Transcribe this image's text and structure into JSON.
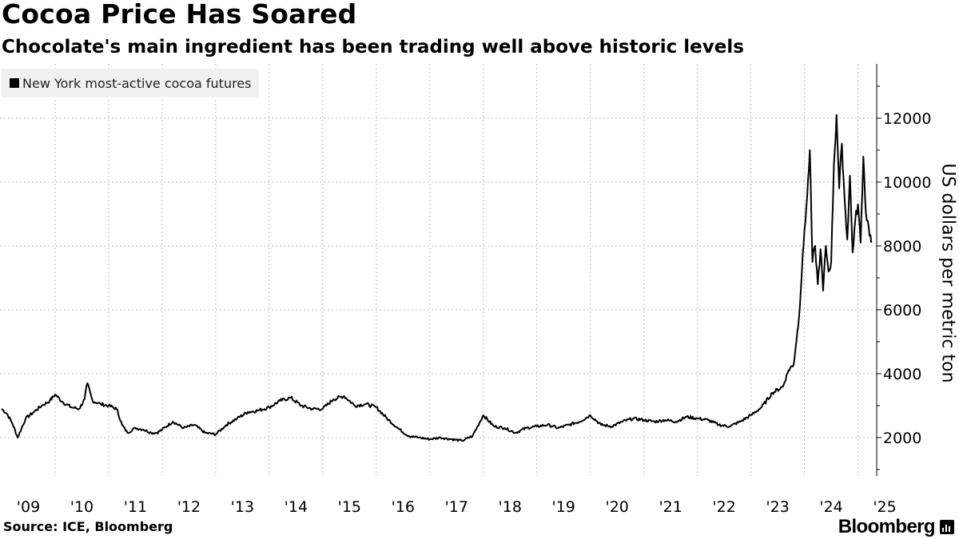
{
  "header": {
    "title": "Cocoa Price Has Soared",
    "subtitle": "Chocolate's main ingredient has been trading well above historic levels"
  },
  "footer": {
    "source": "Source: ICE, Bloomberg",
    "brand": "Bloomberg",
    "brand_icon": "bar-chart-icon"
  },
  "colors": {
    "line": "#000000",
    "grid": "#bdbdbd",
    "legend_bg": "#f1f1f1",
    "background": "#ffffff"
  },
  "chart_data": {
    "type": "line",
    "title": "Cocoa Price Has Soared",
    "subtitle": "Chocolate's main ingredient has been trading well above historic levels",
    "xlabel": "",
    "ylabel": "US dollars per metric ton",
    "ylim": [
      800,
      13700
    ],
    "xlim": [
      2008.97,
      2025.35
    ],
    "yticks": [
      2000,
      4000,
      6000,
      8000,
      10000,
      12000
    ],
    "xtick_labels": [
      "'09",
      "'10",
      "'11",
      "'12",
      "'13",
      "'14",
      "'15",
      "'16",
      "'17",
      "'18",
      "'19",
      "'20",
      "'21",
      "'22",
      "'23",
      "'24",
      "'25"
    ],
    "grid": true,
    "legend_position": "top-left",
    "series": [
      {
        "name": "New York most-active cocoa futures",
        "x": [
          2009.0,
          2009.1,
          2009.2,
          2009.3,
          2009.45,
          2009.6,
          2009.75,
          2009.9,
          2010.0,
          2010.15,
          2010.3,
          2010.45,
          2010.55,
          2010.6,
          2010.7,
          2010.85,
          2011.0,
          2011.15,
          2011.25,
          2011.35,
          2011.5,
          2011.65,
          2011.8,
          2011.9,
          2012.0,
          2012.2,
          2012.4,
          2012.6,
          2012.8,
          2013.0,
          2013.2,
          2013.4,
          2013.6,
          2013.8,
          2014.0,
          2014.2,
          2014.4,
          2014.6,
          2014.8,
          2015.0,
          2015.2,
          2015.4,
          2015.6,
          2015.8,
          2016.0,
          2016.2,
          2016.4,
          2016.6,
          2016.8,
          2017.0,
          2017.2,
          2017.4,
          2017.6,
          2017.8,
          2018.0,
          2018.2,
          2018.4,
          2018.6,
          2018.8,
          2019.0,
          2019.2,
          2019.4,
          2019.6,
          2019.8,
          2020.0,
          2020.2,
          2020.4,
          2020.6,
          2020.8,
          2021.0,
          2021.2,
          2021.4,
          2021.6,
          2021.8,
          2022.0,
          2022.2,
          2022.4,
          2022.6,
          2022.8,
          2023.0,
          2023.2,
          2023.4,
          2023.6,
          2023.7,
          2023.8,
          2023.9,
          2024.0,
          2024.05,
          2024.1,
          2024.15,
          2024.2,
          2024.25,
          2024.3,
          2024.35,
          2024.4,
          2024.45,
          2024.5,
          2024.55,
          2024.6,
          2024.65,
          2024.7,
          2024.75,
          2024.8,
          2024.85,
          2024.9,
          2024.95,
          2025.0,
          2025.05,
          2025.1,
          2025.15,
          2025.2,
          2025.25
        ],
        "values": [
          2900,
          2750,
          2450,
          2000,
          2600,
          2800,
          3000,
          3150,
          3350,
          3100,
          2950,
          2900,
          3200,
          3700,
          3150,
          3050,
          3000,
          2900,
          2400,
          2150,
          2300,
          2250,
          2150,
          2150,
          2250,
          2500,
          2300,
          2400,
          2150,
          2100,
          2400,
          2600,
          2800,
          2850,
          2950,
          3150,
          3250,
          3000,
          2900,
          2900,
          3200,
          3300,
          3000,
          3050,
          2950,
          2600,
          2300,
          2050,
          2000,
          1950,
          2000,
          1950,
          1900,
          2050,
          2700,
          2350,
          2300,
          2150,
          2300,
          2350,
          2400,
          2300,
          2400,
          2500,
          2700,
          2400,
          2350,
          2500,
          2600,
          2550,
          2500,
          2550,
          2500,
          2650,
          2600,
          2550,
          2400,
          2350,
          2500,
          2700,
          2950,
          3400,
          3600,
          4100,
          4300,
          5800,
          8500,
          9500,
          11000,
          7500,
          8000,
          6800,
          7900,
          6600,
          8000,
          7200,
          7500,
          10500,
          12100,
          9800,
          11200,
          9500,
          8200,
          10200,
          7800,
          8800,
          9300,
          8100,
          10800,
          9000,
          8600,
          8100
        ]
      }
    ]
  }
}
